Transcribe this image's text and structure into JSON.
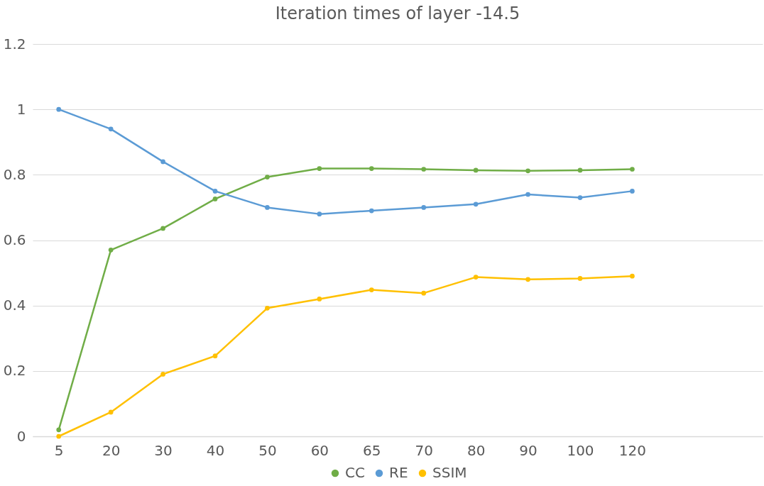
{
  "chart_data": {
    "type": "line",
    "title": "Iteration times of layer -14.5",
    "categories": [
      "5",
      "20",
      "30",
      "40",
      "50",
      "60",
      "65",
      "70",
      "80",
      "90",
      "100",
      "120",
      null,
      null
    ],
    "series": [
      {
        "name": "CC",
        "color": "#70ad47",
        "values": [
          0.02,
          0.57,
          0.636,
          0.726,
          0.793,
          0.819,
          0.819,
          0.817,
          0.814,
          0.812,
          0.814,
          0.817,
          null,
          null
        ]
      },
      {
        "name": "RE",
        "color": "#5b9bd5",
        "values": [
          1.0,
          0.94,
          0.84,
          0.75,
          0.7,
          0.68,
          0.69,
          0.7,
          0.71,
          0.74,
          0.73,
          0.75,
          null,
          null
        ]
      },
      {
        "name": "SSIM",
        "color": "#ffc000",
        "values": [
          0.0,
          0.074,
          0.19,
          0.246,
          0.392,
          0.42,
          0.448,
          0.438,
          0.487,
          0.48,
          0.483,
          0.49,
          null,
          null
        ]
      }
    ],
    "ylim": [
      0,
      1.2
    ],
    "yticks": [
      0,
      0.2,
      0.4,
      0.6,
      0.8,
      1,
      1.2
    ],
    "grid": "y",
    "legend": "bottom",
    "marker": "circle",
    "line_style": "solid"
  }
}
